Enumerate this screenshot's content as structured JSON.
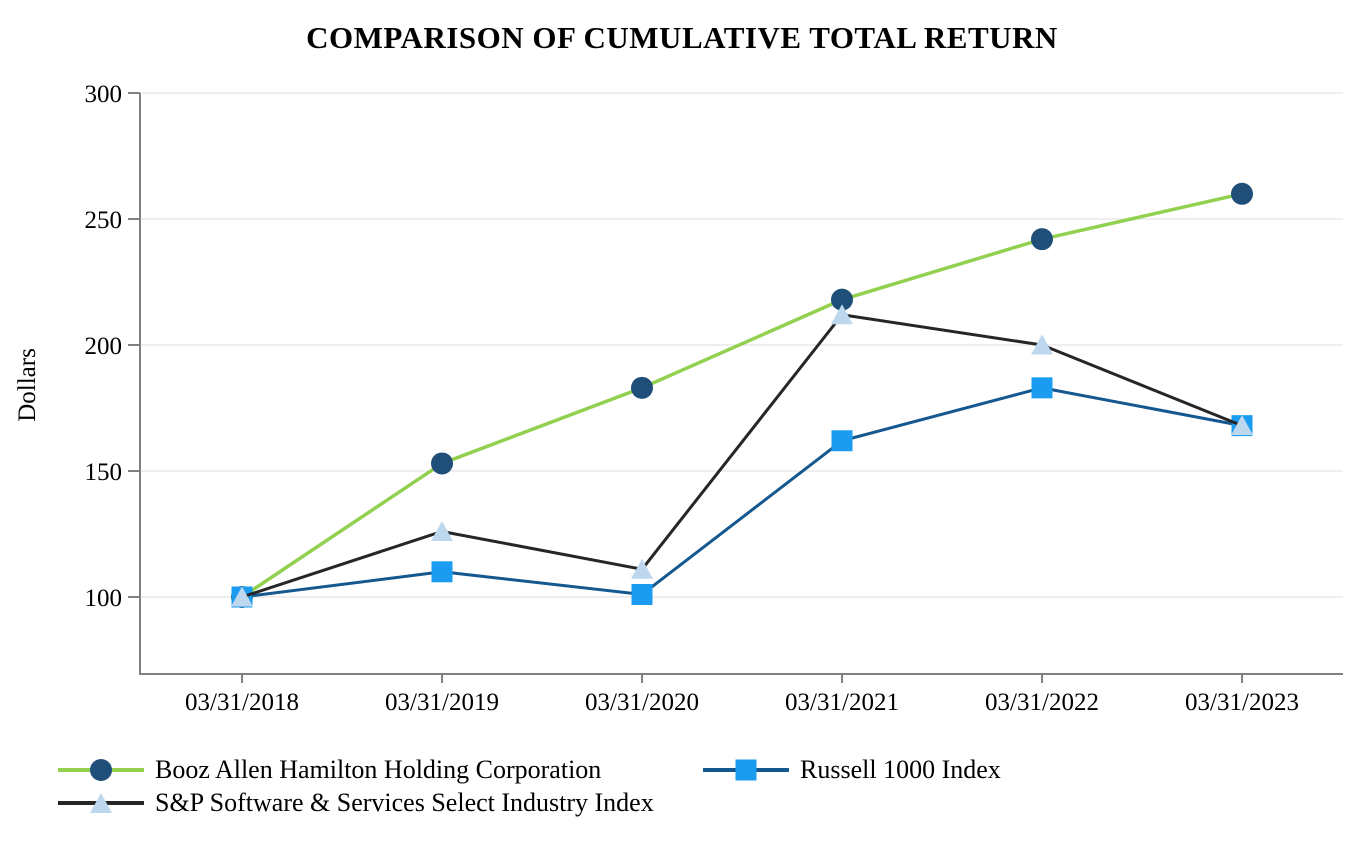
{
  "chart_data": {
    "type": "line",
    "title": "COMPARISON OF CUMULATIVE TOTAL RETURN",
    "ylabel": "Dollars",
    "xlabel": "",
    "x_categories": [
      "03/31/2018",
      "03/31/2019",
      "03/31/2020",
      "03/31/2021",
      "03/31/2022",
      "03/31/2023"
    ],
    "yticks": [
      300,
      250,
      200,
      150,
      100
    ],
    "ylim": [
      100,
      300
    ],
    "grid": true,
    "legend_position": "bottom",
    "series": [
      {
        "name": "Booz Allen Hamilton Holding Corporation",
        "values": [
          100,
          153,
          183,
          218,
          242,
          260
        ],
        "line_color": "#92D050",
        "marker": "circle",
        "marker_color": "#1F4E79"
      },
      {
        "name": "Russell 1000 Index",
        "values": [
          100,
          110,
          101,
          162,
          183,
          168
        ],
        "line_color": "#14588F",
        "marker": "square",
        "marker_color": "#1B9CF0"
      },
      {
        "name": "S&P Software & Services Select Industry Index",
        "values": [
          100,
          126,
          111,
          212,
          200,
          168
        ],
        "line_color": "#262626",
        "marker": "triangle",
        "marker_color": "#BDD7EE"
      }
    ],
    "colors": {
      "axis": "#808080",
      "grid": "#E8E8E8",
      "text": "#000000",
      "background": "#FFFFFF"
    }
  }
}
